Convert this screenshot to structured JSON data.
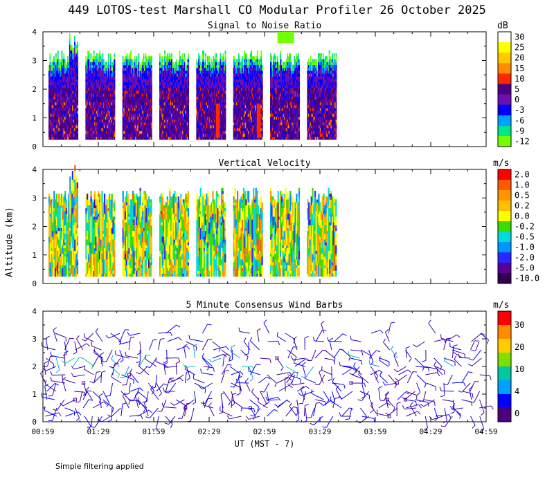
{
  "title": "449 LOTOS-test Marshall CO Modular Profiler 26 October 2025",
  "ylabel": "Altitude (km)",
  "xlabel": "UT  (MST - 7)",
  "footnote": "Simple filtering applied",
  "xticks": [
    "00:59",
    "01:29",
    "01:59",
    "02:29",
    "02:59",
    "03:29",
    "03:59",
    "04:29",
    "04:59"
  ],
  "yticks": [
    "0",
    "1",
    "2",
    "3",
    "4"
  ],
  "chart_data": [
    {
      "type": "heatmap",
      "title": "Signal to Noise Ratio",
      "unit": "dB",
      "xlabel": "UT  (MST - 7)",
      "ylabel": "Altitude (km)",
      "x_range": [
        "00:59",
        "04:59"
      ],
      "ylim": [
        0,
        4
      ],
      "colorbar_ticks": [
        "30",
        "25",
        "20",
        "15",
        "10",
        "5",
        "0",
        "-3",
        "-6",
        "-9",
        "-12"
      ],
      "colorbar_colors": [
        "#ffffff",
        "#ffff00",
        "#ffc800",
        "#ff8c00",
        "#ff2800",
        "#4b0082",
        "#6a0fb0",
        "#0000ff",
        "#00a0ff",
        "#00e68c",
        "#73ff00"
      ],
      "segments_start_minute": [
        3,
        23,
        43,
        63,
        83,
        103,
        123,
        143
      ],
      "segments_duration_min": 16,
      "data_alt_range_km": [
        0.25,
        3.9
      ]
    },
    {
      "type": "heatmap",
      "title": "Vertical Velocity",
      "unit": "m/s",
      "xlabel": "UT  (MST - 7)",
      "ylabel": "Altitude (km)",
      "x_range": [
        "00:59",
        "04:59"
      ],
      "ylim": [
        0,
        4
      ],
      "colorbar_ticks": [
        "2.0",
        "1.0",
        "0.5",
        "0.2",
        "0.0",
        "-0.2",
        "-0.5",
        "-1.0",
        "-2.0",
        "-5.0",
        "-10.0"
      ],
      "colorbar_colors": [
        "#ff0000",
        "#ff5a00",
        "#ff9600",
        "#ffbe00",
        "#ffff00",
        "#3cdc00",
        "#00dcdc",
        "#0096ff",
        "#2828ff",
        "#5a0096",
        "#320050"
      ],
      "data_alt_range_km": [
        0.25,
        3.9
      ]
    },
    {
      "type": "scatter",
      "title": "5 Minute Consensus Wind Barbs",
      "unit": "m/s",
      "xlabel": "UT  (MST - 7)",
      "ylabel": "Altitude (km)",
      "x_range": [
        "00:59",
        "04:59"
      ],
      "ylim": [
        0,
        4
      ],
      "colorbar_ticks": [
        "30",
        "20",
        "10",
        "4",
        "0"
      ],
      "colorbar_colors": [
        "#ff0000",
        "#ff8c00",
        "#ffcc00",
        "#7fe000",
        "#00c8a0",
        "#00a0ff",
        "#0000ff",
        "#4b0082"
      ],
      "barb_interval_min": 5,
      "typical_speed_ms": [
        0,
        8
      ]
    }
  ]
}
